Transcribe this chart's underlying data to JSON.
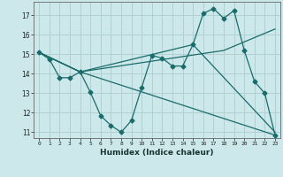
{
  "xlabel": "Humidex (Indice chaleur)",
  "bg_color": "#cce8ea",
  "grid_color": "#b0d0d2",
  "line_color": "#1a6b6b",
  "xlim": [
    -0.5,
    23.5
  ],
  "ylim": [
    10.7,
    17.7
  ],
  "yticks": [
    11,
    12,
    13,
    14,
    15,
    16,
    17
  ],
  "xticks": [
    0,
    1,
    2,
    3,
    4,
    5,
    6,
    7,
    8,
    9,
    10,
    11,
    12,
    13,
    14,
    15,
    16,
    17,
    18,
    19,
    20,
    21,
    22,
    23
  ],
  "line1_x": [
    0,
    1,
    2,
    3,
    4,
    5,
    6,
    7,
    8,
    9,
    10,
    11,
    12,
    13,
    14,
    15,
    16,
    17,
    18,
    19,
    20,
    21,
    22,
    23
  ],
  "line1_y": [
    15.1,
    14.75,
    13.8,
    13.8,
    14.1,
    13.05,
    11.85,
    11.35,
    11.0,
    11.6,
    13.3,
    14.95,
    14.8,
    14.4,
    14.4,
    15.5,
    17.1,
    17.35,
    16.85,
    17.25,
    15.2,
    13.6,
    13.0,
    10.85
  ],
  "line2_x": [
    0,
    4,
    23
  ],
  "line2_y": [
    15.1,
    14.1,
    10.85
  ],
  "line3_x": [
    0,
    4,
    18,
    23
  ],
  "line3_y": [
    15.1,
    14.1,
    15.2,
    16.3
  ],
  "line4_x": [
    0,
    4,
    15,
    23
  ],
  "line4_y": [
    15.1,
    14.1,
    15.5,
    11.0
  ]
}
